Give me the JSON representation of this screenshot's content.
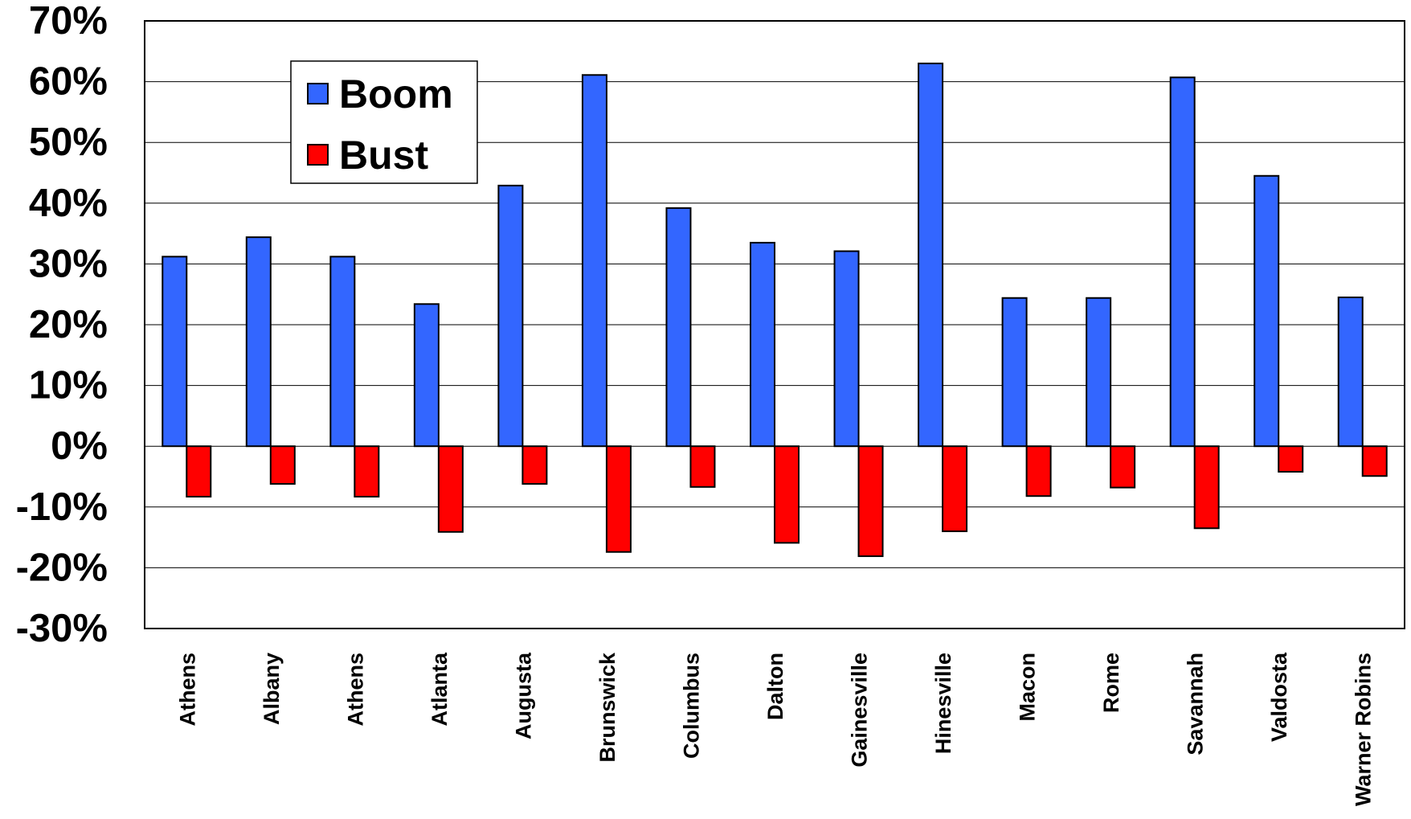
{
  "chart_data": {
    "type": "bar",
    "categories": [
      "Athens",
      "Albany",
      "Athens",
      "Atlanta",
      "Augusta",
      "Brunswick",
      "Columbus",
      "Dalton",
      "Gainesville",
      "Hinesville",
      "Macon",
      "Rome",
      "Savannah",
      "Valdosta",
      "Warner Robins"
    ],
    "series": [
      {
        "name": "Boom",
        "color": "#3366ff",
        "values": [
          31.2,
          34.4,
          31.2,
          23.4,
          42.9,
          61.1,
          39.2,
          33.5,
          32.1,
          63.0,
          24.4,
          24.4,
          60.7,
          44.5,
          24.5
        ]
      },
      {
        "name": "Bust",
        "color": "#ff0000",
        "values": [
          -8.3,
          -6.2,
          -8.3,
          -14.1,
          -6.2,
          -17.4,
          -6.7,
          -15.9,
          -18.1,
          -14.0,
          -8.2,
          -6.8,
          -13.5,
          -4.2,
          -4.9
        ]
      }
    ],
    "yticks": [
      "70%",
      "60%",
      "50%",
      "40%",
      "30%",
      "20%",
      "10%",
      "0%",
      "-10%",
      "-20%",
      "-30%"
    ],
    "ylim": [
      -30,
      70
    ],
    "grid": true,
    "legend_position": "top-left"
  }
}
